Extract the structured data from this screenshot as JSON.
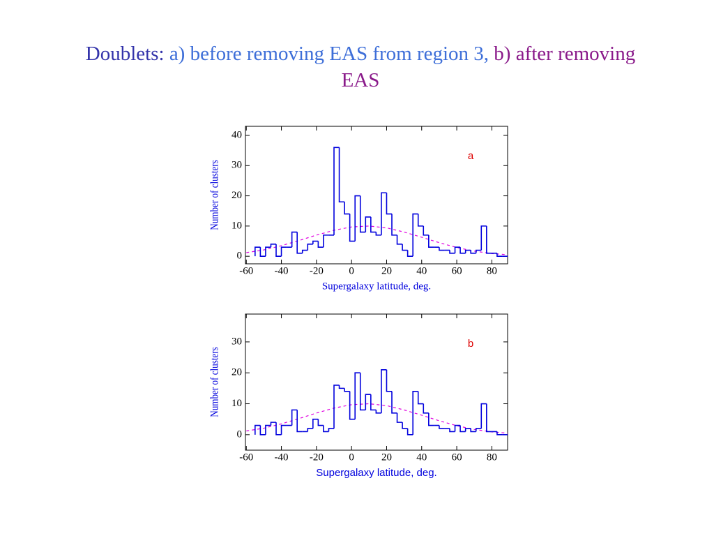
{
  "title": [
    "Doublets:",
    "a) before removing EAS from region 3,",
    "b) after removing EAS"
  ],
  "chart_data": [
    {
      "type": "histogram",
      "label": "a",
      "xlabel": "Supergalaxy latitude, deg.",
      "ylabel": "Number of clusters",
      "color": "#0000dd",
      "fit_color": "#e000e0",
      "bins": [
        -55,
        -52,
        -49,
        -46,
        -43,
        -40,
        -37,
        -34,
        -31,
        -28,
        -25,
        -22,
        -19,
        -16,
        -13,
        -10,
        -7,
        -4,
        -1,
        2,
        5,
        8,
        11,
        14,
        17,
        20,
        23,
        26,
        29,
        32,
        35,
        38,
        41,
        44,
        47,
        50,
        53,
        56,
        59,
        62,
        65,
        68,
        71,
        74,
        77,
        80,
        83,
        86,
        89
      ],
      "values": [
        3,
        0,
        3,
        4,
        0,
        3,
        3,
        8,
        1,
        2,
        4,
        5,
        3,
        7,
        7,
        36,
        18,
        14,
        5,
        20,
        8,
        13,
        8,
        7,
        21,
        14,
        7,
        4,
        2,
        0,
        14,
        10,
        7,
        3,
        3,
        2,
        2,
        1,
        3,
        1,
        2,
        1,
        2,
        10,
        1,
        1,
        0,
        0
      ],
      "fit": {
        "x": [
          -60,
          -50,
          -40,
          -30,
          -20,
          -10,
          0,
          10,
          20,
          30,
          40,
          50,
          60,
          70,
          80,
          89
        ],
        "values": [
          1.2,
          2.1,
          3.5,
          5.2,
          7.0,
          8.6,
          9.7,
          10.0,
          9.4,
          8.0,
          6.3,
          4.5,
          2.9,
          1.7,
          0.9,
          0.5
        ]
      },
      "xlim": [
        -60.5,
        89
      ],
      "ylim": [
        -2.5,
        43
      ],
      "xticks": [
        -60,
        -40,
        -20,
        0,
        20,
        40,
        60,
        80
      ],
      "yticks": [
        0,
        10,
        20,
        30,
        40
      ]
    },
    {
      "type": "histogram",
      "label": "b",
      "xlabel": "Supergalaxy latitude, deg.",
      "ylabel": "Number of clusters",
      "color": "#0000dd",
      "fit_color": "#e000e0",
      "bins": [
        -55,
        -52,
        -49,
        -46,
        -43,
        -40,
        -37,
        -34,
        -31,
        -28,
        -25,
        -22,
        -19,
        -16,
        -13,
        -10,
        -7,
        -4,
        -1,
        2,
        5,
        8,
        11,
        14,
        17,
        20,
        23,
        26,
        29,
        32,
        35,
        38,
        41,
        44,
        47,
        50,
        53,
        56,
        59,
        62,
        65,
        68,
        71,
        74,
        77,
        80,
        83,
        86,
        89
      ],
      "values": [
        3,
        0,
        3,
        4,
        0,
        3,
        3,
        8,
        1,
        1,
        2,
        5,
        3,
        1,
        2,
        16,
        15,
        14,
        5,
        20,
        8,
        13,
        8,
        7,
        21,
        14,
        7,
        4,
        2,
        0,
        14,
        10,
        7,
        3,
        3,
        2,
        2,
        1,
        3,
        1,
        2,
        1,
        2,
        10,
        1,
        1,
        0,
        0
      ],
      "fit": {
        "x": [
          -60,
          -50,
          -40,
          -30,
          -20,
          -10,
          0,
          10,
          20,
          30,
          40,
          50,
          60,
          70,
          80,
          89
        ],
        "values": [
          1.2,
          2.1,
          3.5,
          5.2,
          7.0,
          8.6,
          9.7,
          10.0,
          9.4,
          8.0,
          6.3,
          4.5,
          2.9,
          1.7,
          0.9,
          0.5
        ]
      },
      "xlim": [
        -60.5,
        89
      ],
      "ylim": [
        -5,
        39
      ],
      "xticks": [
        -60,
        -40,
        -20,
        0,
        20,
        40,
        60,
        80
      ],
      "yticks": [
        0,
        10,
        20,
        30
      ]
    }
  ]
}
